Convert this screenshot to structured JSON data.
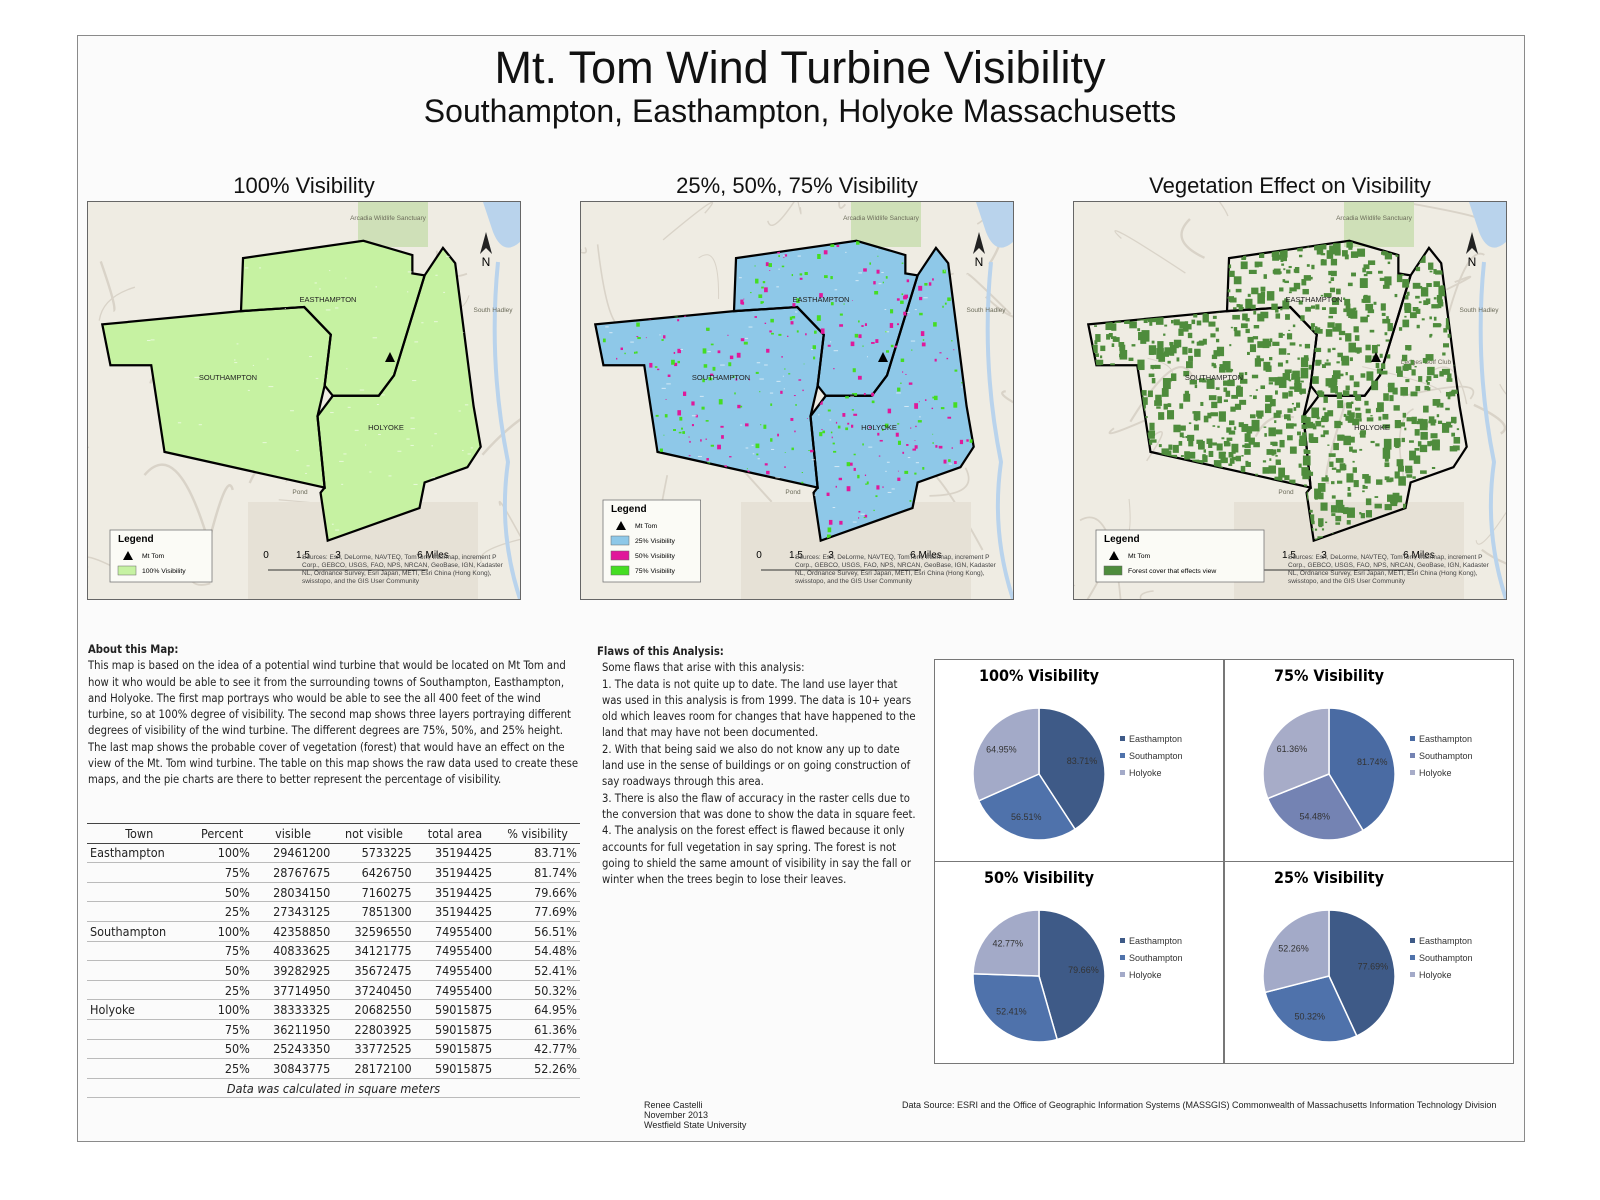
{
  "header": {
    "title": "Mt. Tom Wind Turbine Visibility",
    "subtitle": "Southampton, Easthampton, Holyoke Massachusetts"
  },
  "maps": [
    {
      "title": "100% Visibility",
      "fill": "#c6f2a2",
      "legend": {
        "title": "Legend",
        "items": [
          {
            "label": "Mt Tom",
            "color": "#000000"
          },
          {
            "label": "100% Visibility",
            "color": "#c6f2a2"
          }
        ]
      }
    },
    {
      "title": "25%, 50%, 75% Visibility",
      "fill": "#8ec8e8",
      "legend": {
        "title": "Legend",
        "items": [
          {
            "label": "Mt Tom",
            "color": "#000000"
          },
          {
            "label": "25% Visibility",
            "color": "#8ec8e8"
          },
          {
            "label": "50% Visibility",
            "color": "#e0189a"
          },
          {
            "label": "75% Visibility",
            "color": "#44dd22"
          }
        ]
      }
    },
    {
      "title": "Vegetation Effect on Visibility",
      "legend": {
        "title": "Legend",
        "items": [
          {
            "label": "Mt Tom",
            "color": "#000000"
          },
          {
            "label": "Forest cover that effects view",
            "color": "#4e8c3c"
          }
        ]
      }
    }
  ],
  "map_common": {
    "towns": [
      "EASTHAMPTON",
      "SOUTHAMPTON",
      "HOLYOKE"
    ],
    "north": "N",
    "scale": [
      "0",
      "1.5",
      "3",
      "6 Miles"
    ],
    "places": [
      "Arcadia Wildlife Sanctuary",
      "South Hadley",
      "Ledges Golf Club",
      "Pond"
    ],
    "source": "Sources: Esri, DeLorme, NAVTEQ, TomTom, Intermap, increment P Corp., GEBCO, USGS, FAO, NPS, NRCAN, GeoBase, IGN, Kadaster NL, Ordnance Survey, Esri Japan, METI, Esri China (Hong Kong), swisstopo, and the GIS User Community"
  },
  "about": {
    "heading": "About this Map:",
    "text": "This map is based on the idea of a potential wind turbine that would be located on Mt Tom and how it who would be able to see it from the surrounding towns of Southampton, Easthampton, and Holyoke.  The first map portrays who would be able to see the all 400 feet of the wind turbine, so at 100% degree of visibility.  The second map shows three layers portraying different degrees of visibility of the wind turbine. The different degrees are 75%, 50%, and 25% height.  The last map shows the probable cover of vegetation (forest) that would have an effect on the view of the Mt. Tom wind turbine.  The table on this map shows the raw data used to create these maps, and the pie charts are there to better represent the percentage of visibility."
  },
  "flaws": {
    "heading": "Flaws of this Analysis:",
    "intro": "Some flaws that arise with this analysis:",
    "items": [
      "1. The data is not quite up to date. The land use layer that was used in this analysis is from 1999. The data is 10+ years old which leaves room for changes that have happened to the land that may have not been documented.",
      "2. With that being said we also do not know any up to date land use in the sense of buildings or on going construction of say roadways through this area.",
      "3. There is also the flaw of accuracy in the raster cells due to the conversion that was done to show the data in square feet.",
      "4. The analysis on the forest effect is flawed because it only accounts for full vegetation in say spring. The forest is not going to shield the same amount of visibility in say the fall or winter when the trees begin to lose their leaves."
    ]
  },
  "table": {
    "header": [
      "Town",
      "Percent",
      "visible",
      "not visible",
      "total area",
      "% visibility"
    ],
    "rows": [
      [
        "Easthampton",
        "100%",
        "29461200",
        "5733225",
        "35194425",
        "83.71%"
      ],
      [
        null,
        "75%",
        "28767675",
        "6426750",
        "35194425",
        "81.74%"
      ],
      [
        null,
        "50%",
        "28034150",
        "7160275",
        "35194425",
        "79.66%"
      ],
      [
        null,
        "25%",
        "27343125",
        "7851300",
        "35194425",
        "77.69%"
      ],
      [
        "Southampton",
        "100%",
        "42358850",
        "32596550",
        "74955400",
        "56.51%"
      ],
      [
        null,
        "75%",
        "40833625",
        "34121775",
        "74955400",
        "54.48%"
      ],
      [
        null,
        "50%",
        "39282925",
        "35672475",
        "74955400",
        "52.41%"
      ],
      [
        null,
        "25%",
        "37714950",
        "37240450",
        "74955400",
        "50.32%"
      ],
      [
        "Holyoke",
        "100%",
        "38333325",
        "20682550",
        "59015875",
        "64.95%"
      ],
      [
        null,
        "75%",
        "36211950",
        "22803925",
        "59015875",
        "61.36%"
      ],
      [
        null,
        "50%",
        "25243350",
        "33772525",
        "59015875",
        "42.77%"
      ],
      [
        null,
        "25%",
        "30843775",
        "28172100",
        "59015875",
        "52.26%"
      ]
    ],
    "note": "Data was calculated in square meters"
  },
  "chart_data": [
    {
      "type": "pie",
      "title": "100% Visibility",
      "categories": [
        "Easthampton",
        "Southampton",
        "Holyoke"
      ],
      "values": [
        83.71,
        56.51,
        64.95
      ],
      "value_labels": [
        "83.71%",
        "56.51%",
        "64.95%"
      ],
      "colors": [
        "#3e5a87",
        "#4f72ab",
        "#a3aac8"
      ]
    },
    {
      "type": "pie",
      "title": "75% Visibility",
      "categories": [
        "Easthampton",
        "Southampton",
        "Holyoke"
      ],
      "values": [
        81.74,
        54.48,
        61.36
      ],
      "value_labels": [
        "81.74%",
        "54.48%",
        "61.36%"
      ],
      "colors": [
        "#4a6ba3",
        "#7483b3",
        "#a7acc8"
      ]
    },
    {
      "type": "pie",
      "title": "50% Visibility",
      "categories": [
        "Easthampton",
        "Southampton",
        "Holyoke"
      ],
      "values": [
        79.66,
        52.41,
        42.77
      ],
      "value_labels": [
        "79.66%",
        "52.41%",
        "42.77%"
      ],
      "colors": [
        "#3e5a87",
        "#4f72ab",
        "#a3aac8"
      ]
    },
    {
      "type": "pie",
      "title": "25% Visibility",
      "categories": [
        "Easthampton",
        "Southampton",
        "Holyoke"
      ],
      "values": [
        77.69,
        50.32,
        52.26
      ],
      "value_labels": [
        "77.69%",
        "50.32%",
        "52.26%"
      ],
      "colors": [
        "#3e5a87",
        "#4f72ab",
        "#a3aac8"
      ]
    }
  ],
  "footer": {
    "author": [
      "Renee Castelli",
      "November 2013",
      "Westfield State University"
    ],
    "source": "Data Source: ESRI and the Office of Geographic Information Systems (MASSGIS) Commonwealth of Massachusetts Information Technology Division"
  }
}
